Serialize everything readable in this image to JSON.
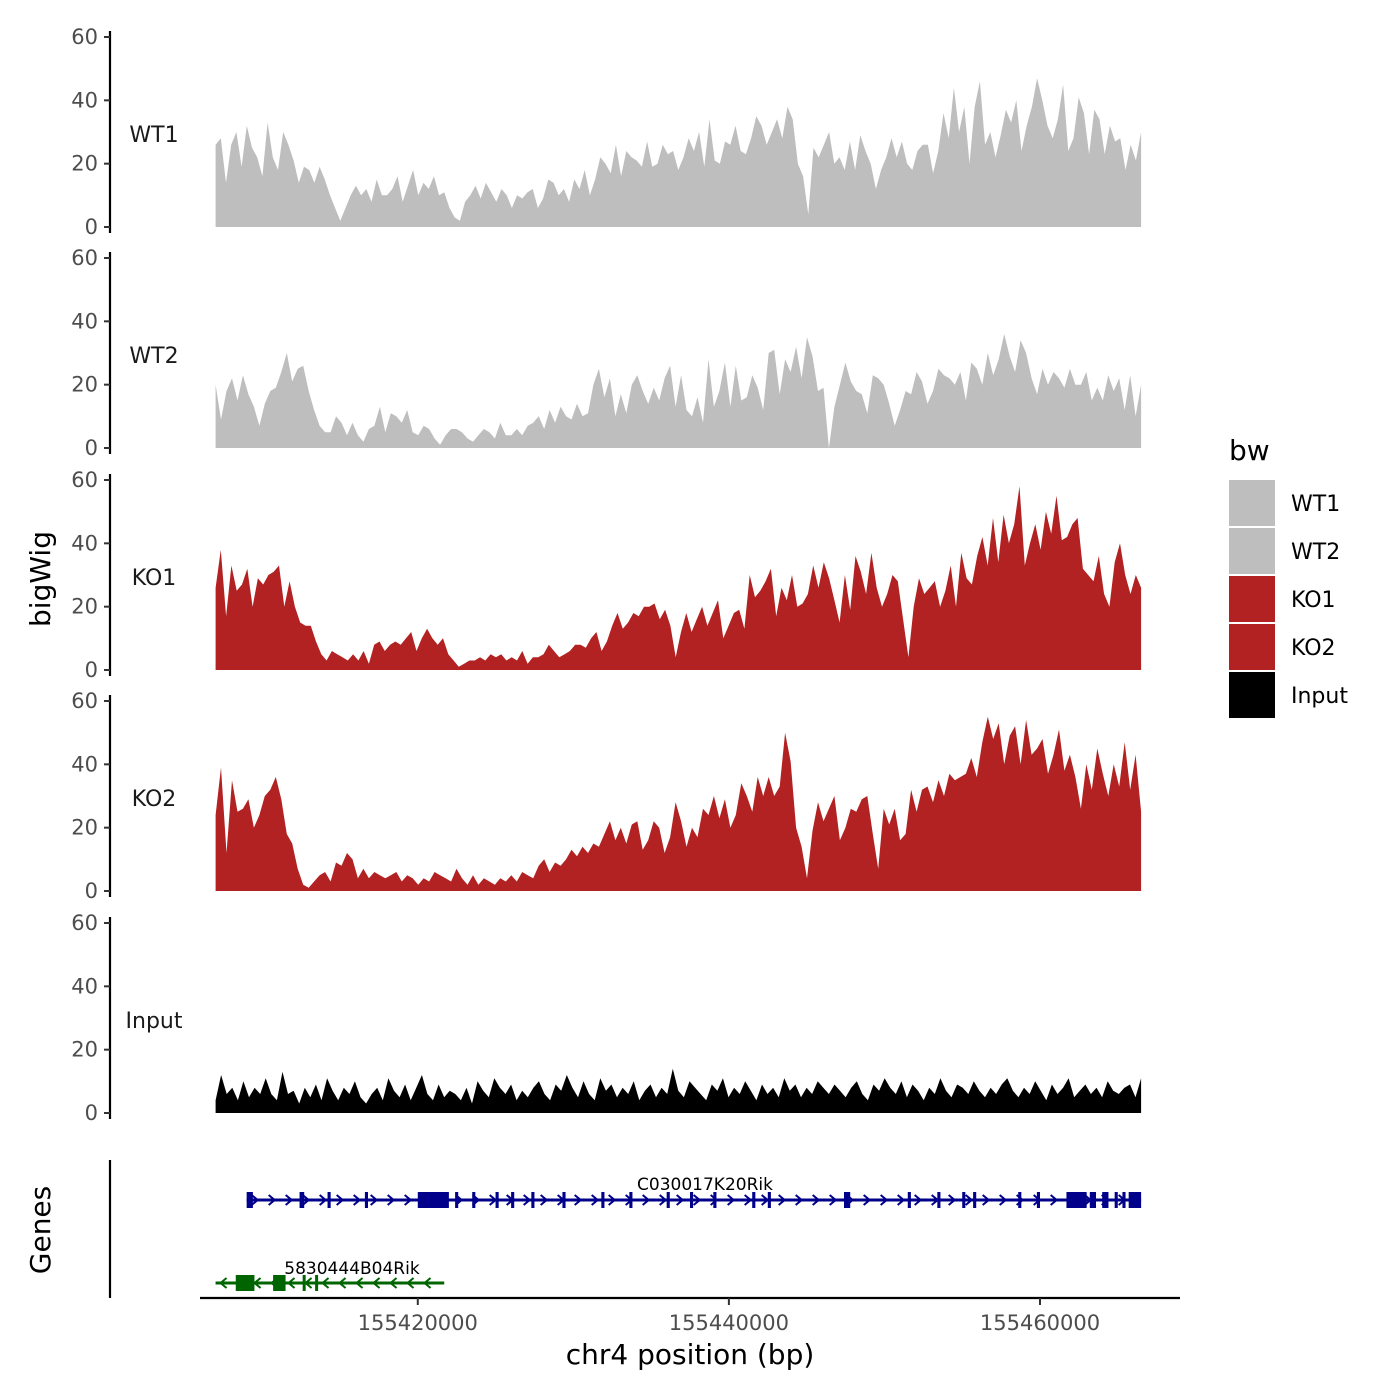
{
  "chart_data": {
    "type": "area",
    "chromosome": "chr4",
    "xlabel": "chr4 position (bp)",
    "ylabel": "bigWig",
    "genes_label": "Genes",
    "xlim": [
      155406000,
      155469000
    ],
    "data_xrange": [
      155407000,
      155466500
    ],
    "x_ticks": [
      155420000,
      155440000,
      155460000
    ],
    "x_tick_labels": [
      "155420000",
      "155440000",
      "155460000"
    ],
    "ylim": [
      0,
      60
    ],
    "y_ticks": [
      0,
      20,
      40,
      60
    ],
    "y_tick_labels": [
      "0",
      "20",
      "40",
      "60"
    ],
    "legend": {
      "title": "bw",
      "placement": "right",
      "entries": [
        {
          "label": "WT1",
          "color": "#bebebe"
        },
        {
          "label": "WT2",
          "color": "#bebebe"
        },
        {
          "label": "KO1",
          "color": "#b22222"
        },
        {
          "label": "KO2",
          "color": "#b22222"
        },
        {
          "label": "Input",
          "color": "#000000"
        }
      ]
    },
    "tracks": [
      {
        "name": "WT1",
        "color": "#bebebe",
        "values": [
          26,
          28,
          14,
          26,
          30,
          19,
          32,
          25,
          22,
          16,
          33,
          22,
          18,
          30,
          26,
          21,
          14,
          19,
          18,
          14,
          19,
          15,
          10,
          6,
          2,
          6,
          10,
          13,
          10,
          12,
          8,
          15,
          10,
          10,
          12,
          16,
          8,
          13,
          18,
          10,
          14,
          12,
          16,
          10,
          11,
          6,
          3,
          2,
          8,
          10,
          13,
          9,
          14,
          11,
          8,
          12,
          10,
          6,
          10,
          9,
          11,
          12,
          6,
          9,
          15,
          14,
          10,
          12,
          8,
          15,
          12,
          18,
          10,
          15,
          22,
          20,
          17,
          26,
          16,
          24,
          22,
          21,
          19,
          27,
          19,
          20,
          26,
          23,
          24,
          18,
          22,
          28,
          24,
          30,
          19,
          34,
          21,
          20,
          27,
          26,
          32,
          24,
          23,
          28,
          35,
          32,
          26,
          30,
          34,
          28,
          38,
          34,
          20,
          16,
          4,
          25,
          22,
          26,
          30,
          20,
          22,
          18,
          27,
          18,
          29,
          24,
          20,
          12,
          18,
          22,
          28,
          22,
          27,
          20,
          18,
          24,
          26,
          26,
          17,
          24,
          36,
          28,
          44,
          30,
          38,
          20,
          38,
          46,
          26,
          30,
          22,
          29,
          37,
          33,
          40,
          24,
          32,
          38,
          47,
          40,
          32,
          28,
          34,
          45,
          24,
          28,
          41,
          36,
          23,
          37,
          34,
          23,
          32,
          27,
          28,
          18,
          26,
          21,
          30
        ]
      },
      {
        "name": "WT2",
        "color": "#bebebe",
        "values": [
          20,
          9,
          18,
          22,
          15,
          23,
          17,
          13,
          7,
          14,
          18,
          19,
          24,
          30,
          21,
          25,
          26,
          18,
          12,
          7,
          5,
          5,
          10,
          8,
          4,
          8,
          4,
          2,
          6,
          7,
          13,
          5,
          11,
          10,
          8,
          12,
          5,
          4,
          7,
          6,
          3,
          1,
          4,
          6,
          6,
          5,
          3,
          2,
          4,
          6,
          5,
          3,
          8,
          4,
          4,
          6,
          4,
          7,
          8,
          10,
          6,
          12,
          8,
          13,
          10,
          9,
          14,
          10,
          11,
          20,
          25,
          16,
          22,
          10,
          17,
          11,
          20,
          23,
          18,
          14,
          19,
          15,
          22,
          26,
          13,
          23,
          12,
          10,
          16,
          8,
          28,
          13,
          18,
          27,
          13,
          26,
          15,
          16,
          23,
          19,
          12,
          30,
          31,
          17,
          28,
          24,
          32,
          22,
          35,
          29,
          18,
          19,
          0,
          13,
          20,
          27,
          21,
          18,
          17,
          11,
          23,
          22,
          20,
          14,
          7,
          12,
          18,
          17,
          24,
          21,
          14,
          18,
          25,
          23,
          22,
          20,
          24,
          15,
          27,
          25,
          20,
          30,
          23,
          28,
          36,
          29,
          24,
          34,
          30,
          22,
          17,
          25,
          20,
          24,
          22,
          19,
          25,
          20,
          20,
          24,
          15,
          19,
          15,
          23,
          18,
          22,
          12,
          23,
          10,
          20
        ]
      },
      {
        "name": "KO1",
        "color": "#b22222",
        "values": [
          26,
          38,
          17,
          33,
          25,
          27,
          32,
          20,
          29,
          27,
          30,
          31,
          33,
          20,
          28,
          20,
          15,
          14,
          14,
          9,
          5,
          3,
          6,
          5,
          4,
          3,
          5,
          3,
          6,
          2,
          8,
          9,
          6,
          8,
          9,
          8,
          10,
          12,
          6,
          10,
          13,
          10,
          8,
          10,
          5,
          3,
          1,
          2,
          3,
          3,
          4,
          3,
          5,
          4,
          5,
          3,
          4,
          3,
          6,
          2,
          4,
          4,
          5,
          8,
          6,
          4,
          5,
          6,
          8,
          8,
          7,
          10,
          12,
          6,
          9,
          14,
          18,
          13,
          15,
          18,
          17,
          20,
          20,
          21,
          16,
          19,
          14,
          4,
          12,
          18,
          12,
          16,
          20,
          14,
          18,
          22,
          10,
          14,
          18,
          19,
          13,
          30,
          23,
          25,
          28,
          32,
          17,
          26,
          22,
          30,
          20,
          21,
          24,
          33,
          26,
          34,
          29,
          22,
          15,
          30,
          19,
          36,
          31,
          24,
          37,
          26,
          20,
          24,
          30,
          28,
          16,
          4,
          20,
          29,
          24,
          26,
          28,
          20,
          25,
          33,
          20,
          37,
          29,
          27,
          36,
          42,
          33,
          48,
          34,
          49,
          40,
          46,
          58,
          33,
          40,
          46,
          38,
          50,
          43,
          55,
          41,
          42,
          46,
          48,
          32,
          30,
          28,
          36,
          24,
          20,
          34,
          40,
          30,
          24,
          30,
          26
        ]
      },
      {
        "name": "KO2",
        "color": "#b22222",
        "values": [
          24,
          39,
          12,
          35,
          25,
          26,
          29,
          20,
          24,
          30,
          32,
          36,
          29,
          18,
          15,
          7,
          2,
          1,
          3,
          5,
          6,
          3,
          9,
          8,
          12,
          10,
          4,
          7,
          4,
          6,
          5,
          4,
          5,
          6,
          3,
          5,
          4,
          2,
          4,
          3,
          6,
          5,
          4,
          3,
          7,
          4,
          2,
          5,
          2,
          4,
          3,
          2,
          4,
          3,
          5,
          3,
          6,
          5,
          4,
          8,
          10,
          6,
          9,
          8,
          10,
          13,
          11,
          14,
          12,
          15,
          14,
          18,
          22,
          16,
          20,
          15,
          21,
          22,
          13,
          16,
          22,
          20,
          12,
          17,
          28,
          22,
          14,
          20,
          17,
          26,
          24,
          30,
          23,
          29,
          20,
          24,
          34,
          30,
          25,
          36,
          30,
          36,
          30,
          33,
          50,
          41,
          20,
          14,
          4,
          19,
          28,
          22,
          26,
          30,
          16,
          20,
          26,
          25,
          29,
          30,
          18,
          7,
          26,
          21,
          26,
          16,
          18,
          32,
          25,
          32,
          33,
          28,
          35,
          30,
          37,
          35,
          36,
          37,
          42,
          36,
          47,
          55,
          48,
          53,
          40,
          49,
          52,
          40,
          54,
          43,
          45,
          48,
          37,
          43,
          51,
          38,
          43,
          36,
          26,
          40,
          32,
          45,
          37,
          30,
          40,
          33,
          47,
          32,
          43,
          25
        ]
      },
      {
        "name": "Input",
        "color": "#000000",
        "values": [
          4,
          12,
          6,
          8,
          4,
          10,
          5,
          8,
          6,
          11,
          6,
          4,
          13,
          6,
          7,
          3,
          8,
          5,
          9,
          4,
          11,
          7,
          4,
          8,
          6,
          10,
          5,
          3,
          6,
          8,
          4,
          11,
          7,
          5,
          9,
          4,
          8,
          12,
          6,
          4,
          9,
          5,
          7,
          6,
          4,
          8,
          3,
          10,
          7,
          5,
          11,
          8,
          6,
          9,
          4,
          7,
          5,
          8,
          10,
          6,
          4,
          9,
          7,
          12,
          8,
          5,
          10,
          6,
          4,
          11,
          7,
          9,
          5,
          8,
          6,
          10,
          4,
          7,
          9,
          5,
          8,
          6,
          14,
          7,
          5,
          10,
          8,
          6,
          4,
          9,
          7,
          11,
          5,
          8,
          6,
          10,
          7,
          4,
          9,
          6,
          8,
          5,
          11,
          7,
          9,
          5,
          8,
          6,
          10,
          8,
          6,
          9,
          7,
          5,
          8,
          10,
          6,
          4,
          9,
          7,
          11,
          8,
          6,
          10,
          5,
          9,
          7,
          4,
          8,
          6,
          11,
          7,
          5,
          9,
          8,
          6,
          10,
          7,
          5,
          8,
          6,
          9,
          11,
          7,
          5,
          8,
          6,
          10,
          7,
          4,
          9,
          6,
          8,
          11,
          5,
          7,
          9,
          6,
          8,
          5,
          10,
          7,
          6,
          8,
          9,
          5,
          11
        ]
      }
    ],
    "genes": [
      {
        "name": "C030017K20Rik",
        "strand": "+",
        "color": "#00008b",
        "start": 155409000,
        "end": 155466500,
        "exons": [
          [
            155409000,
            155409400
          ],
          [
            155412400,
            155412700
          ],
          [
            155414200,
            155414400
          ],
          [
            155416600,
            155416800
          ],
          [
            155420000,
            155422000
          ],
          [
            155422400,
            155422600
          ],
          [
            155423500,
            155423700
          ],
          [
            155425000,
            155425200
          ],
          [
            155426000,
            155426200
          ],
          [
            155427300,
            155427500
          ],
          [
            155429300,
            155429500
          ],
          [
            155431800,
            155432000
          ],
          [
            155433600,
            155433800
          ],
          [
            155436000,
            155436200
          ],
          [
            155437500,
            155437700
          ],
          [
            155439000,
            155439200
          ],
          [
            155441500,
            155441700
          ],
          [
            155442500,
            155442700
          ],
          [
            155447400,
            155447800
          ],
          [
            155451500,
            155451700
          ],
          [
            155453400,
            155453600
          ],
          [
            155455000,
            155455200
          ],
          [
            155455700,
            155455900
          ],
          [
            155458600,
            155458800
          ],
          [
            155459800,
            155460000
          ],
          [
            155461700,
            155463000
          ],
          [
            155463200,
            155463600
          ],
          [
            155464000,
            155464400
          ],
          [
            155464800,
            155465000
          ],
          [
            155465300,
            155465500
          ],
          [
            155465700,
            155466500
          ]
        ]
      },
      {
        "name": "5830444B04Rik",
        "strand": "-",
        "color": "#006400",
        "start": 155407000,
        "end": 155421700,
        "exons": [
          [
            155408300,
            155409500
          ],
          [
            155410700,
            155411500
          ],
          [
            155412600,
            155412700
          ],
          [
            155413400,
            155413500
          ]
        ]
      }
    ]
  }
}
